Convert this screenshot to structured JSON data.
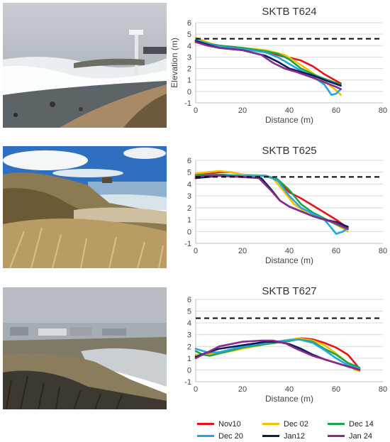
{
  "figure": {
    "photos": [
      {
        "name": "photo-t624",
        "alt": "Storm waves washing over beach near lifeguard tower"
      },
      {
        "name": "photo-t625",
        "alt": "Eroded dune scarp with dry grass"
      },
      {
        "name": "photo-t627",
        "alt": "Foggy breached dune with houses behind"
      }
    ]
  },
  "series_meta": [
    {
      "name": "Nov10",
      "color": "#e8121c"
    },
    {
      "name": "Dec 02",
      "color": "#f2c200"
    },
    {
      "name": "Dec 14",
      "color": "#1aa54a"
    },
    {
      "name": "Dec 20",
      "color": "#22a7df"
    },
    {
      "name": "Jan12",
      "color": "#0b1b5c"
    },
    {
      "name": "Jan 24",
      "color": "#8a2a8a"
    }
  ],
  "chart_data": [
    {
      "type": "line",
      "title": "SKTB T624",
      "xlabel": "Distance (m)",
      "ylabel": "Elevation (m)",
      "xlim": [
        0,
        80
      ],
      "ylim": [
        -1,
        6
      ],
      "xticks": [
        "0",
        "20",
        "40",
        "60",
        "80"
      ],
      "yticks": [
        "-1",
        "0",
        "1",
        "2",
        "3",
        "4",
        "5",
        "6"
      ],
      "reference_line": {
        "y": 4.6,
        "style": "dashed"
      },
      "grid": true,
      "series": [
        {
          "name": "Nov10",
          "x": [
            0,
            5,
            10,
            20,
            30,
            38,
            41,
            45,
            50,
            55,
            62
          ],
          "y": [
            4.4,
            4.2,
            4.0,
            3.8,
            3.5,
            3.0,
            2.9,
            2.7,
            2.2,
            1.5,
            0.7
          ]
        },
        {
          "name": "Dec 02",
          "x": [
            0,
            5,
            10,
            20,
            30,
            38,
            45,
            50,
            55,
            60,
            62
          ],
          "y": [
            4.7,
            4.3,
            3.9,
            3.8,
            3.6,
            3.2,
            2.3,
            1.6,
            0.9,
            0.1,
            -0.3
          ]
        },
        {
          "name": "Dec 14",
          "x": [
            0,
            5,
            10,
            20,
            30,
            35,
            40,
            45,
            50,
            55,
            62
          ],
          "y": [
            4.5,
            4.2,
            4.0,
            3.8,
            3.5,
            3.3,
            2.8,
            2.0,
            1.5,
            1.1,
            0.6
          ]
        },
        {
          "name": "Dec 20",
          "x": [
            0,
            5,
            10,
            20,
            30,
            35,
            40,
            45,
            50,
            55,
            58,
            60,
            62
          ],
          "y": [
            4.5,
            4.2,
            3.9,
            3.7,
            3.4,
            3.0,
            2.4,
            1.8,
            1.3,
            0.6,
            -0.3,
            -0.2,
            0.2
          ]
        },
        {
          "name": "Jan12",
          "x": [
            0,
            5,
            10,
            20,
            30,
            35,
            40,
            45,
            50,
            55,
            62
          ],
          "y": [
            4.4,
            4.1,
            3.8,
            3.6,
            3.1,
            2.6,
            2.0,
            1.7,
            1.4,
            1.0,
            0.5
          ]
        },
        {
          "name": "Jan 24",
          "x": [
            0,
            5,
            10,
            20,
            28,
            33,
            38,
            43,
            50,
            55,
            60,
            62
          ],
          "y": [
            4.3,
            4.0,
            3.8,
            3.6,
            3.2,
            2.5,
            2.0,
            1.7,
            1.2,
            0.8,
            0.4,
            0.2
          ]
        }
      ]
    },
    {
      "type": "line",
      "title": "SKTB T625",
      "xlabel": "Distance (m)",
      "ylabel": "",
      "xlim": [
        0,
        80
      ],
      "ylim": [
        -1,
        6
      ],
      "xticks": [
        "0",
        "20",
        "40",
        "60",
        "80"
      ],
      "yticks": [
        "-1",
        "0",
        "1",
        "2",
        "3",
        "4",
        "5",
        "6"
      ],
      "reference_line": {
        "y": 4.6,
        "style": "dashed"
      },
      "grid": true,
      "series": [
        {
          "name": "Nov10",
          "x": [
            0,
            5,
            10,
            15,
            20,
            30,
            35,
            40,
            45,
            50,
            55,
            60,
            65
          ],
          "y": [
            4.8,
            4.9,
            5.0,
            5.0,
            4.8,
            4.7,
            4.3,
            3.3,
            2.8,
            2.2,
            1.6,
            1.0,
            0.3
          ]
        },
        {
          "name": "Dec 02",
          "x": [
            0,
            5,
            10,
            15,
            20,
            30,
            33,
            38,
            42,
            48,
            55,
            60,
            65
          ],
          "y": [
            4.9,
            5.0,
            5.1,
            5.0,
            4.8,
            4.7,
            4.5,
            3.3,
            2.3,
            1.5,
            1.1,
            0.6,
            0.0
          ]
        },
        {
          "name": "Dec 14",
          "x": [
            0,
            5,
            10,
            20,
            30,
            35,
            40,
            45,
            50,
            55,
            60,
            65
          ],
          "y": [
            4.7,
            4.8,
            4.8,
            4.7,
            4.7,
            4.4,
            3.5,
            2.3,
            1.6,
            1.1,
            0.6,
            0.2
          ]
        },
        {
          "name": "Dec 20",
          "x": [
            0,
            5,
            10,
            20,
            30,
            35,
            40,
            45,
            50,
            55,
            58,
            60,
            63,
            65
          ],
          "y": [
            4.6,
            4.7,
            4.7,
            4.7,
            4.7,
            4.3,
            3.0,
            2.0,
            1.5,
            1.0,
            0.3,
            -0.2,
            0.0,
            0.3
          ]
        },
        {
          "name": "Jan12",
          "x": [
            0,
            5,
            10,
            20,
            28,
            32,
            36,
            40,
            45,
            50,
            55,
            60,
            65
          ],
          "y": [
            4.5,
            4.6,
            4.7,
            4.6,
            4.5,
            3.6,
            2.6,
            2.1,
            1.7,
            1.3,
            1.0,
            0.8,
            0.4
          ]
        },
        {
          "name": "Jan 24",
          "x": [
            0,
            5,
            10,
            20,
            27,
            32,
            36,
            40,
            45,
            50,
            55,
            60,
            65
          ],
          "y": [
            4.6,
            4.7,
            4.7,
            4.6,
            4.5,
            3.5,
            2.6,
            2.1,
            1.7,
            1.3,
            1.0,
            0.7,
            0.2
          ]
        }
      ]
    },
    {
      "type": "line",
      "title": "SKTB T627",
      "xlabel": "Distance (m)",
      "ylabel": "",
      "xlim": [
        0,
        80
      ],
      "ylim": [
        -1,
        6
      ],
      "xticks": [
        "0",
        "20",
        "40",
        "60",
        "80"
      ],
      "yticks": [
        "-1",
        "0",
        "1",
        "2",
        "3",
        "4",
        "5",
        "6"
      ],
      "reference_line": {
        "y": 4.4,
        "style": "dashed"
      },
      "grid": true,
      "series": [
        {
          "name": "Nov10",
          "x": [
            0,
            5,
            10,
            20,
            30,
            38,
            45,
            50,
            55,
            60,
            65,
            68,
            70
          ],
          "y": [
            1.2,
            1.4,
            1.5,
            1.9,
            2.2,
            2.5,
            2.7,
            2.6,
            2.3,
            1.9,
            1.3,
            0.6,
            0.1
          ]
        },
        {
          "name": "Dec 02",
          "x": [
            0,
            5,
            10,
            20,
            30,
            38,
            44,
            50,
            55,
            60,
            65,
            68,
            70
          ],
          "y": [
            1.3,
            1.3,
            1.4,
            1.8,
            2.2,
            2.5,
            2.7,
            2.5,
            2.1,
            1.4,
            0.6,
            0.0,
            -0.1
          ]
        },
        {
          "name": "Dec 14",
          "x": [
            0,
            3,
            6,
            10,
            20,
            30,
            38,
            44,
            50,
            55,
            60,
            65,
            70
          ],
          "y": [
            1.6,
            1.3,
            1.2,
            1.4,
            1.9,
            2.2,
            2.4,
            2.6,
            2.4,
            1.8,
            1.3,
            0.6,
            0.2
          ]
        },
        {
          "name": "Dec 20",
          "x": [
            0,
            5,
            10,
            20,
            30,
            38,
            44,
            50,
            55,
            60,
            65,
            70
          ],
          "y": [
            1.8,
            1.5,
            1.5,
            2.0,
            2.3,
            2.5,
            2.6,
            2.3,
            1.7,
            1.0,
            0.4,
            0.1
          ]
        },
        {
          "name": "Jan12",
          "x": [
            0,
            5,
            10,
            20,
            30,
            35,
            40,
            45,
            50,
            55,
            60,
            65,
            70
          ],
          "y": [
            1.1,
            1.5,
            1.8,
            2.1,
            2.4,
            2.4,
            2.2,
            1.8,
            1.3,
            0.9,
            0.6,
            0.3,
            0.0
          ]
        },
        {
          "name": "Jan 24",
          "x": [
            0,
            5,
            10,
            20,
            28,
            33,
            38,
            43,
            50,
            55,
            60,
            65,
            70
          ],
          "y": [
            1.0,
            1.5,
            2.0,
            2.4,
            2.5,
            2.5,
            2.3,
            1.8,
            1.2,
            0.9,
            0.6,
            0.3,
            0.0
          ]
        }
      ]
    }
  ]
}
